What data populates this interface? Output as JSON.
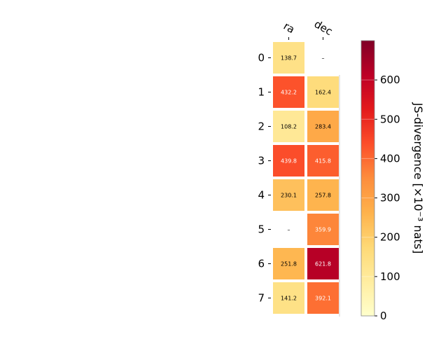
{
  "chart_data": {
    "type": "heatmap",
    "title": "",
    "columns": [
      "ra",
      "dec"
    ],
    "rows": [
      "0",
      "1",
      "2",
      "3",
      "4",
      "5",
      "6",
      "7"
    ],
    "values": [
      [
        138.7,
        null
      ],
      [
        432.2,
        162.4
      ],
      [
        108.2,
        283.4
      ],
      [
        439.8,
        415.8
      ],
      [
        230.1,
        257.8
      ],
      [
        null,
        359.9
      ],
      [
        251.8,
        621.8
      ],
      [
        141.2,
        392.1
      ]
    ],
    "missing_label": "–",
    "colorbar": {
      "label": "JS-divergence [×10⁻³ nats]",
      "range": [
        0,
        700
      ],
      "ticks": [
        0,
        100,
        200,
        300,
        400,
        500,
        600
      ],
      "tick_labels": [
        "0",
        "100",
        "200",
        "300",
        "400",
        "500",
        "600"
      ],
      "colormap": "YlOrRd",
      "gridlines": true
    },
    "colors": {
      "stops": [
        "#ffffcc",
        "#ffeda0",
        "#fed976",
        "#feb24c",
        "#fd8d3c",
        "#fc4e2a",
        "#e31a1c",
        "#bd0026",
        "#800026"
      ],
      "cell_border": "#ffffff",
      "axis": "#000000"
    }
  }
}
